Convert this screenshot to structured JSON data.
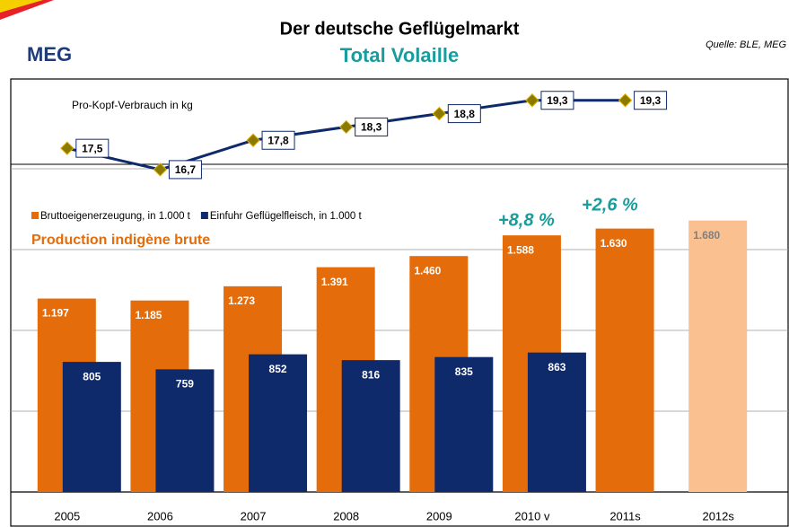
{
  "chart_data": {
    "type": "bar",
    "title": "Der deutsche Geflügelmarkt",
    "subtitle": "Total Volaille",
    "source": "Quelle: BLE, MEG",
    "logo": "MEG",
    "annotations": [
      "Production indigène brute",
      "+8,8 %",
      "+2,6 %"
    ],
    "categories": [
      "2005",
      "2006",
      "2007",
      "2008",
      "2009",
      "2010 v",
      "2011s",
      "2012s"
    ],
    "ylim": [
      0,
      2000
    ],
    "yticks": [
      0,
      500,
      1000,
      1500,
      2000
    ],
    "grid": true,
    "y2lim": [
      4.6,
      20.1
    ],
    "series": [
      {
        "name": "Bruttoeigenerzeugung, in 1.000 t",
        "color": "#e46c0a",
        "colors": [
          "#e46c0a",
          "#e46c0a",
          "#e46c0a",
          "#e46c0a",
          "#e46c0a",
          "#e46c0a",
          "#e46c0a",
          "#fac090"
        ],
        "values": [
          1197,
          1185,
          1273,
          1391,
          1460,
          1588,
          1630,
          1680
        ],
        "value_labels": [
          "1.197",
          "1.185",
          "1.273",
          "1.391",
          "1.460",
          "1.588",
          "1.630",
          "1.680"
        ]
      },
      {
        "name": "Einfuhr Geflügelfleisch, in 1.000 t",
        "color": "#0f2a6b",
        "values": [
          805,
          759,
          852,
          816,
          835,
          863,
          null,
          null
        ]
      },
      {
        "name": "Pro-Kopf-Verbrauch in kg",
        "type": "line",
        "axis": "y2",
        "color": "#0f2a6b",
        "marker_color": "#8b7a00",
        "values": [
          17.5,
          16.7,
          17.8,
          18.3,
          18.8,
          19.3,
          19.3,
          null
        ],
        "value_labels": [
          "17,5",
          "16,7",
          "17,8",
          "18,3",
          "18,8",
          "19,3",
          "19,3",
          null
        ]
      }
    ]
  }
}
